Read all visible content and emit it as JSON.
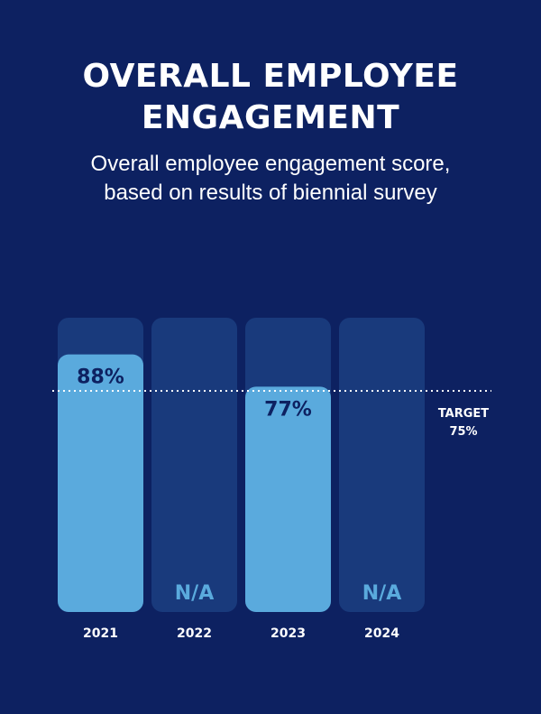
{
  "title_line1": "OVERALL EMPLOYEE",
  "title_line2": "ENGAGEMENT",
  "subtitle_line1": "Overall employee engagement score,",
  "subtitle_line2": "based on results of biennial survey",
  "colors": {
    "background": "#0d2161",
    "track": "#193a7c",
    "bar": "#5aaadd",
    "value_text": "#0d2161",
    "na_text": "#5aaadd"
  },
  "chart_data": {
    "type": "bar",
    "categories": [
      "2021",
      "2022",
      "2023",
      "2024"
    ],
    "values": [
      88,
      null,
      77,
      null
    ],
    "value_labels": [
      "88%",
      "N/A",
      "77%",
      "N/A"
    ],
    "target": {
      "label": "TARGET",
      "value": 75,
      "value_label": "75%"
    },
    "ylim": [
      0,
      100
    ]
  }
}
